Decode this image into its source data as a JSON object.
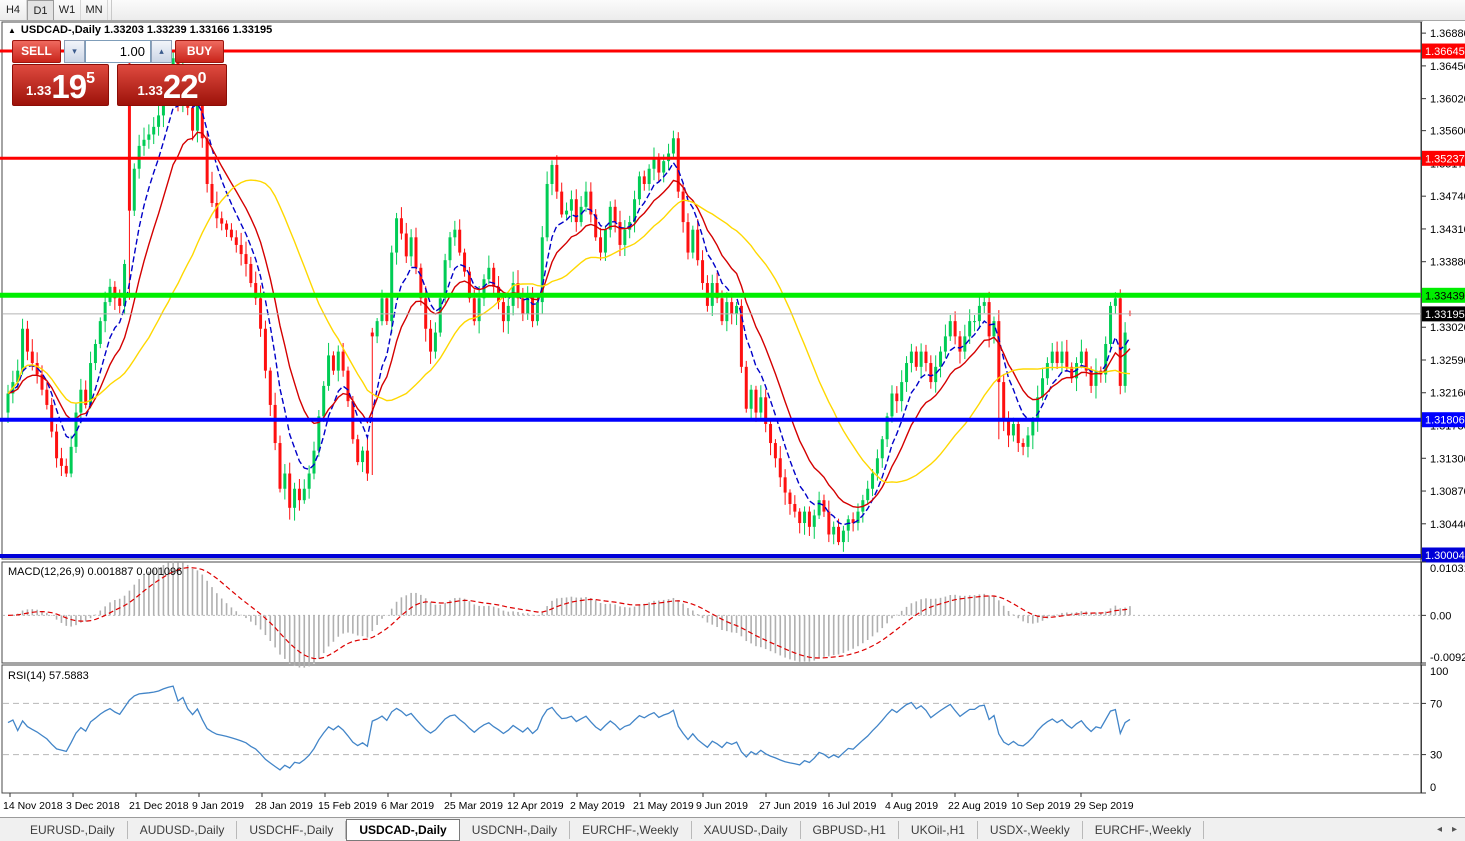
{
  "toolbar": {
    "timeframes": [
      {
        "label": "H4",
        "active": false
      },
      {
        "label": "D1",
        "active": true
      },
      {
        "label": "W1",
        "active": false
      },
      {
        "label": "MN",
        "active": false
      }
    ]
  },
  "chart": {
    "collapse_icon": "▲",
    "title": "USDCAD-,Daily  1.33203 1.33239 1.33166 1.33195",
    "trade_panel": {
      "sell_label": "SELL",
      "buy_label": "BUY",
      "volume": "1.00",
      "spin_down_icon": "▾",
      "spin_up_icon": "▴",
      "sell_price": {
        "prefix": "1.33",
        "big": "19",
        "sup": "5"
      },
      "buy_price": {
        "prefix": "1.33",
        "big": "22",
        "sup": "0"
      }
    }
  },
  "chart_data": {
    "type": "candlestick",
    "symbol": "USDCAD-",
    "period": "Daily",
    "ohlc_current": {
      "open": 1.33203,
      "high": 1.33239,
      "low": 1.33166,
      "close": 1.33195
    },
    "x_range_dates": [
      "14 Nov 2018",
      "4 Oct 2019"
    ],
    "date_ticks": [
      "14 Nov 2018",
      "3 Dec 2018",
      "21 Dec 2018",
      "9 Jan 2019",
      "28 Jan 2019",
      "15 Feb 2019",
      "6 Mar 2019",
      "25 Mar 2019",
      "12 Apr 2019",
      "2 May 2019",
      "21 May 2019",
      "9 Jun 2019",
      "27 Jun 2019",
      "16 Jul 2019",
      "4 Aug 2019",
      "22 Aug 2019",
      "10 Sep 2019",
      "29 Sep 2019"
    ],
    "price_axis_ticks": [
      "1.36880",
      "1.36450",
      "1.36020",
      "1.35600",
      "1.35170",
      "1.34740",
      "1.34310",
      "1.33880",
      "1.33450",
      "1.33020",
      "1.32590",
      "1.32160",
      "1.31730",
      "1.31300",
      "1.30870",
      "1.30440",
      "1.30010"
    ],
    "current_price": {
      "value": 1.33195,
      "label": "1.33195",
      "bg": "#000000",
      "text": "#ffffff",
      "line_color": "#b4b4b4"
    },
    "levels": [
      {
        "value": 1.36645,
        "label": "1.36645",
        "color": "#fe0000",
        "text_color": "#ffffff",
        "width": 3
      },
      {
        "value": 1.35237,
        "label": "1.35237",
        "color": "#fe0000",
        "text_color": "#ffffff",
        "width": 3
      },
      {
        "value": 1.33439,
        "label": "1.33439",
        "color": "#00ee00",
        "text_color": "#000000",
        "width": 5
      },
      {
        "value": 1.31806,
        "label": "1.31806",
        "color": "#0000fe",
        "text_color": "#ffffff",
        "width": 4
      },
      {
        "value": 1.30004,
        "label": "1.30004",
        "color": "#0000d8",
        "text_color": "#ffffff",
        "width": 4
      }
    ],
    "price_range": {
      "top": 1.37026,
      "bottom": 1.29978
    },
    "first_open": 1.319,
    "noise_seed": 77,
    "closes": [
      1.3215,
      1.323,
      1.3245,
      1.33,
      1.327,
      1.3255,
      1.324,
      1.322,
      1.32,
      1.3165,
      1.313,
      1.312,
      1.311,
      1.3145,
      1.319,
      1.322,
      1.32,
      1.3255,
      1.328,
      1.331,
      1.3335,
      1.3355,
      1.334,
      1.333,
      1.3385,
      1.3455,
      1.351,
      1.354,
      1.3548,
      1.3555,
      1.3565,
      1.358,
      1.361,
      1.3635,
      1.3655,
      1.36,
      1.364,
      1.359,
      1.356,
      1.361,
      1.355,
      1.349,
      1.3465,
      1.3445,
      1.3438,
      1.343,
      1.342,
      1.341,
      1.3398,
      1.3385,
      1.336,
      1.334,
      1.33,
      1.3245,
      1.32,
      1.315,
      1.309,
      1.311,
      1.3065,
      1.309,
      1.3075,
      1.309,
      1.311,
      1.314,
      1.3185,
      1.3225,
      1.3265,
      1.3245,
      1.327,
      1.3245,
      1.3205,
      1.3155,
      1.3125,
      1.314,
      1.311,
      1.329,
      1.331,
      1.334,
      1.331,
      1.34,
      1.3445,
      1.3425,
      1.3395,
      1.342,
      1.338,
      1.334,
      1.33,
      1.327,
      1.3295,
      1.334,
      1.339,
      1.342,
      1.343,
      1.34,
      1.3375,
      1.334,
      1.331,
      1.334,
      1.3365,
      1.338,
      1.3355,
      1.3335,
      1.331,
      1.333,
      1.336,
      1.334,
      1.332,
      1.3345,
      1.331,
      1.3335,
      1.342,
      1.349,
      1.3515,
      1.348,
      1.345,
      1.3455,
      1.347,
      1.344,
      1.346,
      1.348,
      1.345,
      1.342,
      1.34,
      1.343,
      1.346,
      1.344,
      1.341,
      1.343,
      1.344,
      1.347,
      1.35,
      1.349,
      1.351,
      1.3525,
      1.3505,
      1.352,
      1.353,
      1.355,
      1.348,
      1.344,
      1.34,
      1.343,
      1.339,
      1.336,
      1.333,
      1.336,
      1.334,
      1.331,
      1.3335,
      1.332,
      1.333,
      1.325,
      1.3195,
      1.322,
      1.319,
      1.321,
      1.3175,
      1.315,
      1.313,
      1.3105,
      1.3085,
      1.307,
      1.306,
      1.3045,
      1.306,
      1.304,
      1.3055,
      1.3075,
      1.306,
      1.303,
      1.304,
      1.302,
      1.3035,
      1.305,
      1.3045,
      1.306,
      1.3075,
      1.309,
      1.311,
      1.313,
      1.3155,
      1.3185,
      1.3215,
      1.3205,
      1.323,
      1.3255,
      1.327,
      1.325,
      1.327,
      1.3255,
      1.323,
      1.325,
      1.327,
      1.329,
      1.331,
      1.329,
      1.327,
      1.329,
      1.331,
      1.331,
      1.333,
      1.3335,
      1.329,
      1.331,
      1.323,
      1.318,
      1.316,
      1.3175,
      1.315,
      1.3145,
      1.316,
      1.318,
      1.321,
      1.3235,
      1.3255,
      1.327,
      1.3255,
      1.327,
      1.325,
      1.3235,
      1.3255,
      1.327,
      1.3245,
      1.3225,
      1.3245,
      1.324,
      1.328,
      1.333,
      1.334,
      1.3225,
      1.3295,
      1.33195
    ],
    "special_candles": {
      "25": {
        "o": 1.3648,
        "h": 1.3662,
        "l": 1.3338
      },
      "34": {
        "h": 1.3664
      },
      "36": {
        "h": 1.3656
      },
      "39": {
        "h": 1.3645
      },
      "75": {
        "o": 1.3295,
        "l": 1.3108
      },
      "80": {
        "h": 1.3452
      },
      "112": {
        "h": 1.3521
      },
      "137": {
        "h": 1.356
      },
      "151": {
        "l": 1.3242
      },
      "165": {
        "l": 1.3028
      },
      "169": {
        "l": 1.302
      },
      "171": {
        "l": 1.3016
      },
      "204": {
        "l": 1.3155
      },
      "209": {
        "l": 1.3134
      },
      "211": {
        "l": 1.3142
      },
      "228": {
        "h": 1.3348
      },
      "229": {
        "l": 1.3214
      },
      "231": {
        "o": 1.33203,
        "h": 1.33239,
        "l": 1.33166
      }
    },
    "colors": {
      "bull": "#00cc55",
      "bear": "#fe1010",
      "ma_fast": "#0000c8",
      "ma_mid": "#d40000",
      "ma_slow": "#ffd800",
      "macd_bar": "#b0b0b0",
      "macd_signal": "#dd0000",
      "rsi_line": "#4285c8",
      "grid_dash": "#b8b8b8",
      "frame": "#4a4a4a"
    },
    "moving_averages": [
      {
        "type": "ema",
        "period": 7,
        "style": "dashed",
        "color_key": "ma_fast"
      },
      {
        "type": "ema",
        "period": 14,
        "style": "solid",
        "color_key": "ma_mid"
      },
      {
        "type": "sma",
        "period": 30,
        "style": "solid",
        "color_key": "ma_slow"
      }
    ],
    "indicators": {
      "macd": {
        "display": "MACD(12,26,9) 0.001887 0.001096",
        "params": [
          12,
          26,
          9
        ],
        "value_main": 0.001887,
        "value_signal": 0.001096,
        "axis_labels": [
          "0.010311",
          "0.00",
          "-0.009203"
        ],
        "ylim": [
          -0.009203,
          0.010311
        ]
      },
      "rsi": {
        "display": "RSI(14) 57.5883",
        "period": 14,
        "value": 57.5883,
        "axis_labels": [
          "100",
          "70",
          "30",
          "0"
        ],
        "level_lines": [
          70,
          30
        ],
        "ylim": [
          0,
          100
        ]
      }
    }
  },
  "tabs": {
    "items": [
      {
        "label": "EURUSD-,Daily",
        "active": false
      },
      {
        "label": "AUDUSD-,Daily",
        "active": false
      },
      {
        "label": "USDCHF-,Daily",
        "active": false
      },
      {
        "label": "USDCAD-,Daily",
        "active": true
      },
      {
        "label": "USDCNH-,Daily",
        "active": false
      },
      {
        "label": "EURCHF-,Weekly",
        "active": false
      },
      {
        "label": "XAUUSD-,Daily",
        "active": false
      },
      {
        "label": "GBPUSD-,H1",
        "active": false
      },
      {
        "label": "UKOil-,H1",
        "active": false
      },
      {
        "label": "USDX-,Weekly",
        "active": false
      },
      {
        "label": "EURCHF-,Weekly",
        "active": false
      }
    ],
    "nav_left_icon": "◂",
    "nav_right_icon": "▸"
  }
}
